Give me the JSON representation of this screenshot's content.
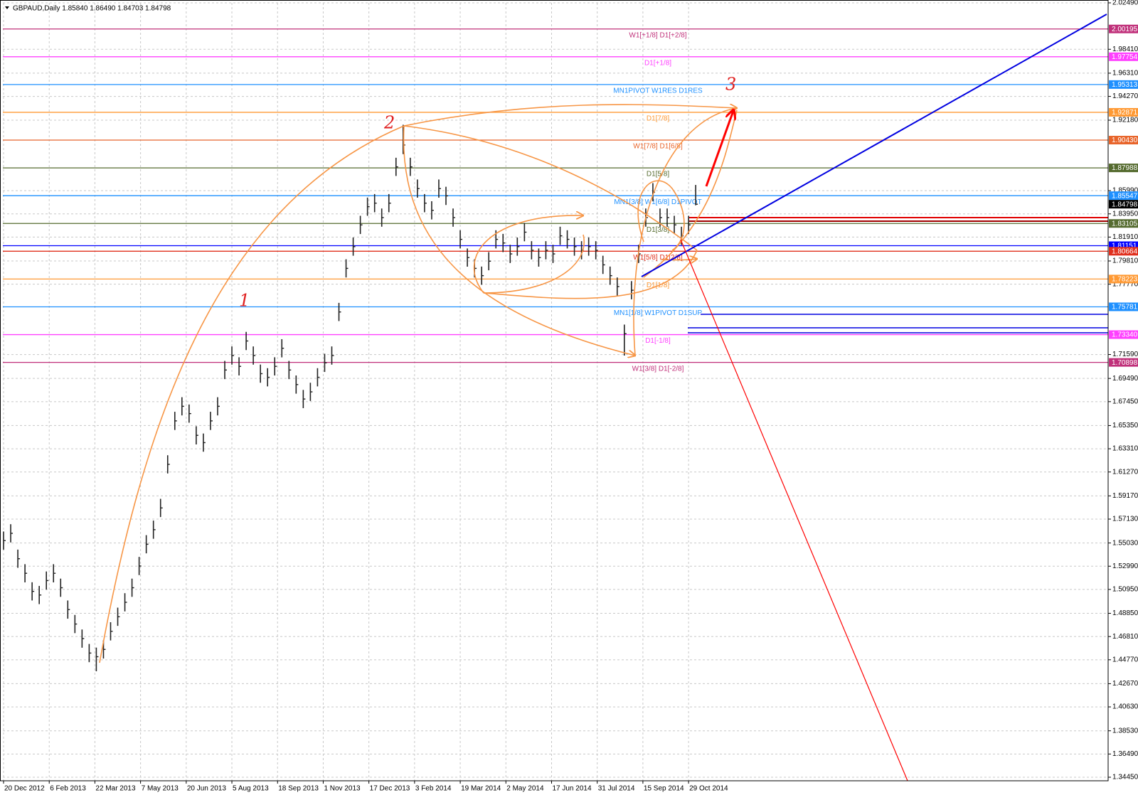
{
  "chart_data": {
    "type": "ohlc",
    "title": "GBPAUD,Daily  1.85840 1.86490 1.84703 1.84798",
    "color": "#222222",
    "grid": true,
    "x": [
      0,
      5,
      10,
      15,
      20,
      25,
      30,
      35,
      40,
      45,
      50,
      55,
      60,
      65,
      70,
      75,
      80,
      85,
      90,
      95,
      100,
      105,
      110,
      115,
      120,
      125,
      130,
      135,
      140,
      145,
      150,
      155,
      160,
      165,
      170,
      175,
      180,
      185,
      190,
      195,
      200,
      205,
      210,
      215,
      220,
      225,
      230,
      235,
      240,
      245,
      250,
      255,
      260,
      265,
      270,
      275,
      280,
      285,
      290,
      295,
      300,
      305,
      310,
      315,
      320,
      325,
      330,
      335,
      340,
      345,
      350,
      355,
      360,
      365,
      370,
      375,
      380,
      385,
      390,
      395,
      400,
      405,
      410,
      415,
      420,
      425,
      430,
      435,
      440,
      445,
      450,
      455,
      460,
      465,
      470,
      475,
      480,
      485
    ],
    "high": [
      1.5604,
      1.5668,
      1.5445,
      1.5317,
      1.5158,
      1.5126,
      1.5253,
      1.5317,
      1.519,
      1.4998,
      1.4871,
      1.4743,
      1.4616,
      1.4584,
      1.4648,
      1.4807,
      1.4935,
      1.5062,
      1.519,
      1.5381,
      1.5572,
      1.57,
      1.5891,
      1.6274,
      1.6656,
      1.6784,
      1.672,
      1.6529,
      1.6465,
      1.6656,
      1.6784,
      1.7103,
      1.723,
      1.7135,
      1.7358,
      1.723,
      1.7071,
      1.7039,
      1.7135,
      1.7294,
      1.7103,
      1.6975,
      1.6848,
      1.6911,
      1.7039,
      1.7166,
      1.723,
      1.7613,
      1.7996,
      1.8187,
      1.8378,
      1.8538,
      1.8569,
      1.8442,
      1.8569,
      1.8888,
      1.9178,
      1.8888,
      1.8697,
      1.8569,
      1.8506,
      1.8697,
      1.8633,
      1.8442,
      1.8251,
      1.8091,
      1.7996,
      1.7932,
      1.8059,
      1.8251,
      1.8219,
      1.8123,
      1.8187,
      1.8314,
      1.8155,
      1.8091,
      1.8155,
      1.8123,
      1.8282,
      1.8251,
      1.8187,
      1.8155,
      1.8187,
      1.8155,
      1.8027,
      1.7932,
      1.7836,
      1.7422,
      1.7804,
      1.8123,
      1.8442,
      1.8665,
      1.8442,
      1.8442,
      1.8378,
      1.8282,
      1.8378,
      1.8649
    ],
    "low": [
      1.5444,
      1.5508,
      1.5285,
      1.5157,
      1.4998,
      1.4966,
      1.5093,
      1.5157,
      1.503,
      1.4838,
      1.4711,
      1.4583,
      1.4456,
      1.4376,
      1.4488,
      1.4647,
      1.4775,
      1.4902,
      1.503,
      1.5221,
      1.5412,
      1.554,
      1.5731,
      1.6114,
      1.6496,
      1.6624,
      1.656,
      1.6369,
      1.6305,
      1.6496,
      1.6624,
      1.6943,
      1.707,
      1.6975,
      1.7198,
      1.707,
      1.6911,
      1.6879,
      1.6975,
      1.7134,
      1.6943,
      1.6815,
      1.6688,
      1.6751,
      1.6879,
      1.7006,
      1.707,
      1.7453,
      1.7836,
      1.8027,
      1.8218,
      1.8378,
      1.8409,
      1.8282,
      1.8409,
      1.8728,
      1.892,
      1.8728,
      1.8537,
      1.8409,
      1.8346,
      1.8537,
      1.8473,
      1.8282,
      1.8091,
      1.7931,
      1.7836,
      1.7772,
      1.7899,
      1.8091,
      1.8059,
      1.7963,
      1.8027,
      1.8154,
      1.7995,
      1.7931,
      1.7995,
      1.7963,
      1.8122,
      1.8091,
      1.8027,
      1.7995,
      1.8027,
      1.7995,
      1.7867,
      1.7772,
      1.7676,
      1.715,
      1.7644,
      1.7963,
      1.8282,
      1.8505,
      1.8282,
      1.8282,
      1.8218,
      1.8122,
      1.8218,
      1.847
    ],
    "close": [
      1.5524,
      1.5588,
      1.5365,
      1.5237,
      1.5078,
      1.5046,
      1.5173,
      1.5237,
      1.511,
      1.4918,
      1.4791,
      1.4663,
      1.4536,
      1.4504,
      1.4568,
      1.4727,
      1.4855,
      1.4982,
      1.511,
      1.5301,
      1.5492,
      1.562,
      1.5811,
      1.6194,
      1.6576,
      1.6704,
      1.664,
      1.6449,
      1.6385,
      1.6576,
      1.6704,
      1.7023,
      1.715,
      1.7055,
      1.7278,
      1.715,
      1.6991,
      1.6959,
      1.7055,
      1.7214,
      1.7023,
      1.6895,
      1.6768,
      1.6831,
      1.6959,
      1.7086,
      1.715,
      1.7533,
      1.7916,
      1.8107,
      1.8298,
      1.8458,
      1.8489,
      1.8362,
      1.8489,
      1.8808,
      1.9,
      1.8808,
      1.8617,
      1.8489,
      1.8426,
      1.8617,
      1.8553,
      1.8362,
      1.8171,
      1.8011,
      1.7916,
      1.7852,
      1.7979,
      1.8171,
      1.8139,
      1.8043,
      1.8107,
      1.8234,
      1.8075,
      1.8011,
      1.8075,
      1.8043,
      1.8202,
      1.8171,
      1.8107,
      1.8075,
      1.8107,
      1.8075,
      1.7947,
      1.7852,
      1.7756,
      1.7342,
      1.7724,
      1.8043,
      1.8362,
      1.8585,
      1.8362,
      1.8362,
      1.8298,
      1.8202,
      1.8298,
      1.84798
    ],
    "xlim": [
      -0.5,
      774
    ],
    "xticks": [
      {
        "value": 0,
        "label": "20 Dec 2012"
      },
      {
        "value": 32,
        "label": "6 Feb 2013"
      },
      {
        "value": 64,
        "label": "22 Mar 2013"
      },
      {
        "value": 96,
        "label": "7 May 2013"
      },
      {
        "value": 128,
        "label": "20 Jun 2013"
      },
      {
        "value": 160,
        "label": "5 Aug 2013"
      },
      {
        "value": 192,
        "label": "18 Sep 2013"
      },
      {
        "value": 224,
        "label": "1 Nov 2013"
      },
      {
        "value": 256,
        "label": "17 Dec 2013"
      },
      {
        "value": 288,
        "label": "3 Feb 2014"
      },
      {
        "value": 320,
        "label": "19 Mar 2014"
      },
      {
        "value": 352,
        "label": "2 May 2014"
      },
      {
        "value": 384,
        "label": "17 Jun 2014"
      },
      {
        "value": 416,
        "label": "31 Jul 2014"
      },
      {
        "value": 448,
        "label": "15 Sep 2014"
      },
      {
        "value": 480,
        "label": "29 Oct 2014"
      }
    ],
    "ylim": [
      1.3445,
      2.0249
    ],
    "yticks": [
      {
        "value": 2.0249,
        "label": "2.02490"
      },
      {
        "value": 1.9841,
        "label": "1.98410"
      },
      {
        "value": 1.9631,
        "label": "1.96310"
      },
      {
        "value": 1.9427,
        "label": "1.94270"
      },
      {
        "value": 1.9218,
        "label": "1.92180"
      },
      {
        "value": 1.8599,
        "label": "1.85990"
      },
      {
        "value": 1.8395,
        "label": "1.83950"
      },
      {
        "value": 1.8191,
        "label": "1.81910"
      },
      {
        "value": 1.7981,
        "label": "1.79810"
      },
      {
        "value": 1.7777,
        "label": "1.77770"
      },
      {
        "value": 1.7159,
        "label": "1.71590"
      },
      {
        "value": 1.6949,
        "label": "1.69490"
      },
      {
        "value": 1.6745,
        "label": "1.67450"
      },
      {
        "value": 1.6535,
        "label": "1.65350"
      },
      {
        "value": 1.6331,
        "label": "1.63310"
      },
      {
        "value": 1.6127,
        "label": "1.61270"
      },
      {
        "value": 1.5917,
        "label": "1.59170"
      },
      {
        "value": 1.5713,
        "label": "1.57130"
      },
      {
        "value": 1.5503,
        "label": "1.55030"
      },
      {
        "value": 1.5299,
        "label": "1.52990"
      },
      {
        "value": 1.5095,
        "label": "1.50950"
      },
      {
        "value": 1.4885,
        "label": "1.48850"
      },
      {
        "value": 1.4681,
        "label": "1.46810"
      },
      {
        "value": 1.4477,
        "label": "1.44770"
      },
      {
        "value": 1.4267,
        "label": "1.42670"
      },
      {
        "value": 1.4063,
        "label": "1.40630"
      },
      {
        "value": 1.3853,
        "label": "1.38530"
      },
      {
        "value": 1.3649,
        "label": "1.36490"
      },
      {
        "value": 1.3445,
        "label": "1.34450"
      }
    ],
    "levels": {
      "names": [
        "W1[+1/8] D1[+2/8]",
        "D1[+1/8]",
        "MN1PIVOT W1RES D1RES",
        "D1[7/8]",
        "W1[7/8] D1[6/8]",
        "D1[5/8]",
        "MN1[3/8] W1[6/8] D1PIVOT",
        "D1[3/8]",
        null,
        "W1[5/8] D1[2/8]",
        "D1[1/8]",
        "MN1[1/8] W1PIVOT D1SUP",
        "D1[-1/8]",
        "W1[3/8] D1[-2/8]"
      ],
      "values": [
        2.00195,
        1.97754,
        1.95313,
        1.92871,
        1.9043,
        1.87988,
        1.85547,
        1.83105,
        1.81151,
        1.80664,
        1.78223,
        1.75781,
        1.7334,
        1.70898
      ],
      "value_labels": [
        "2.00195",
        "1.97754",
        "1.95313",
        "1.92871",
        "1.90430",
        "1.87988",
        "1.85547",
        "1.83105",
        "1.81151",
        "1.80664",
        "1.78223",
        "1.75781",
        "1.73340",
        "1.70898"
      ],
      "colors": [
        "#c0307a",
        "#ff40ff",
        "#1e90ff",
        "#ff9933",
        "#e8642a",
        "#556b2f",
        "#1e90ff",
        "#556b2f",
        "#0000ff",
        "#e0301e",
        "#ff9933",
        "#1e90ff",
        "#ff40ff",
        "#c0307a"
      ]
    },
    "current_price": 1.84798,
    "current_price_color": "#000000",
    "annotations": [
      "1",
      "2",
      "3"
    ]
  }
}
